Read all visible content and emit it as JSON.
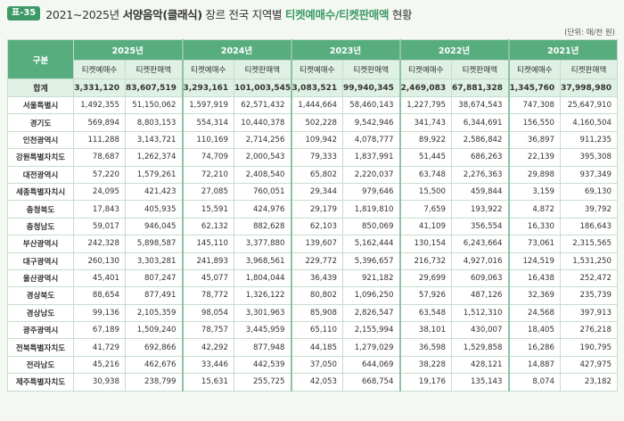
{
  "header": {
    "badge": "표-35",
    "title_prefix": "2021~2025년 ",
    "title_bold": "서양음악(클래식)",
    "title_mid": " 장르 전국 지역별 ",
    "title_green": "티켓예매수/티켓판매액",
    "title_suffix": " 현황"
  },
  "unit_note": "(단위: 매/천 원)",
  "table": {
    "gubun_label": "구분",
    "years": [
      "2025년",
      "2024년",
      "2023년",
      "2022년",
      "2021년"
    ],
    "sub_headers": [
      "티켓예매수",
      "티켓판매액"
    ],
    "total": {
      "label": "합계",
      "values": [
        "3,331,120",
        "83,607,519",
        "3,293,161",
        "101,003,545",
        "3,083,521",
        "99,940,345",
        "2,469,083",
        "67,881,328",
        "1,345,760",
        "37,998,980"
      ]
    },
    "rows": [
      {
        "label": "서울특별시",
        "values": [
          "1,492,355",
          "51,150,062",
          "1,597,919",
          "62,571,432",
          "1,444,664",
          "58,460,143",
          "1,227,795",
          "38,674,543",
          "747,308",
          "25,647,910"
        ]
      },
      {
        "label": "경기도",
        "values": [
          "569,894",
          "8,803,153",
          "554,314",
          "10,440,378",
          "502,228",
          "9,542,946",
          "341,743",
          "6,344,691",
          "156,550",
          "4,160,504"
        ]
      },
      {
        "label": "인천광역시",
        "values": [
          "111,288",
          "3,143,721",
          "110,169",
          "2,714,256",
          "109,942",
          "4,078,777",
          "89,922",
          "2,586,842",
          "36,897",
          "911,235"
        ]
      },
      {
        "label": "강원특별자치도",
        "values": [
          "78,687",
          "1,262,374",
          "74,709",
          "2,000,543",
          "79,333",
          "1,837,991",
          "51,445",
          "686,263",
          "22,139",
          "395,308"
        ]
      },
      {
        "label": "대전광역시",
        "values": [
          "57,220",
          "1,579,261",
          "72,210",
          "2,408,540",
          "65,802",
          "2,220,037",
          "63,748",
          "2,276,363",
          "29,898",
          "937,349"
        ]
      },
      {
        "label": "세종특별자치시",
        "values": [
          "24,095",
          "421,423",
          "27,085",
          "760,051",
          "29,344",
          "979,646",
          "15,500",
          "459,844",
          "3,159",
          "69,130"
        ]
      },
      {
        "label": "충청북도",
        "values": [
          "17,843",
          "405,935",
          "15,591",
          "424,976",
          "29,179",
          "1,819,810",
          "7,659",
          "193,922",
          "4,872",
          "39,792"
        ]
      },
      {
        "label": "충청남도",
        "values": [
          "59,017",
          "946,045",
          "62,132",
          "882,628",
          "62,103",
          "850,069",
          "41,109",
          "356,554",
          "16,330",
          "186,643"
        ]
      },
      {
        "label": "부산광역시",
        "values": [
          "242,328",
          "5,898,587",
          "145,110",
          "3,377,880",
          "139,607",
          "5,162,444",
          "130,154",
          "6,243,664",
          "73,061",
          "2,315,565"
        ]
      },
      {
        "label": "대구광역시",
        "values": [
          "260,130",
          "3,303,281",
          "241,893",
          "3,968,561",
          "229,772",
          "5,396,657",
          "216,732",
          "4,927,016",
          "124,519",
          "1,531,250"
        ]
      },
      {
        "label": "울산광역시",
        "values": [
          "45,401",
          "807,247",
          "45,077",
          "1,804,044",
          "36,439",
          "921,182",
          "29,699",
          "609,063",
          "16,438",
          "252,472"
        ]
      },
      {
        "label": "경상북도",
        "values": [
          "88,654",
          "877,491",
          "78,772",
          "1,326,122",
          "80,802",
          "1,096,250",
          "57,926",
          "487,126",
          "32,369",
          "235,739"
        ]
      },
      {
        "label": "경상남도",
        "values": [
          "99,136",
          "2,105,359",
          "98,054",
          "3,301,963",
          "85,908",
          "2,826,547",
          "63,548",
          "1,512,310",
          "24,568",
          "397,913"
        ]
      },
      {
        "label": "광주광역시",
        "values": [
          "67,189",
          "1,509,240",
          "78,757",
          "3,445,959",
          "65,110",
          "2,155,994",
          "38,101",
          "430,007",
          "18,405",
          "276,218"
        ]
      },
      {
        "label": "전북특별자치도",
        "values": [
          "41,729",
          "692,866",
          "42,292",
          "877,948",
          "44,185",
          "1,279,029",
          "36,598",
          "1,529,858",
          "16,286",
          "190,795"
        ]
      },
      {
        "label": "전라남도",
        "values": [
          "45,216",
          "462,676",
          "33,446",
          "442,539",
          "37,050",
          "644,069",
          "38,228",
          "428,121",
          "14,887",
          "427,975"
        ]
      },
      {
        "label": "제주특별자치도",
        "values": [
          "30,938",
          "238,799",
          "15,631",
          "255,725",
          "42,053",
          "668,754",
          "19,176",
          "135,143",
          "8,074",
          "23,182"
        ]
      }
    ]
  }
}
